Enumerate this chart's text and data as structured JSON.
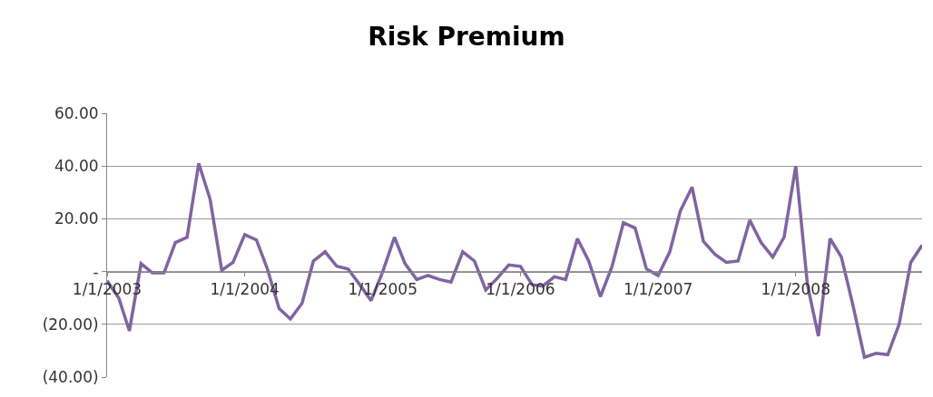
{
  "chart_data": {
    "type": "line",
    "title": "Risk Premium",
    "x": [
      "2003-01",
      "2003-02",
      "2003-03",
      "2003-04",
      "2003-05",
      "2003-06",
      "2003-07",
      "2003-08",
      "2003-09",
      "2003-10",
      "2003-11",
      "2003-12",
      "2004-01",
      "2004-02",
      "2004-03",
      "2004-04",
      "2004-05",
      "2004-06",
      "2004-07",
      "2004-08",
      "2004-09",
      "2004-10",
      "2004-11",
      "2004-12",
      "2005-01",
      "2005-02",
      "2005-03",
      "2005-04",
      "2005-05",
      "2005-06",
      "2005-07",
      "2005-08",
      "2005-09",
      "2005-10",
      "2005-11",
      "2005-12",
      "2006-01",
      "2006-02",
      "2006-03",
      "2006-04",
      "2006-05",
      "2006-06",
      "2006-07",
      "2006-08",
      "2006-09",
      "2006-10",
      "2006-11",
      "2006-12",
      "2007-01",
      "2007-02",
      "2007-03",
      "2007-04",
      "2007-05",
      "2007-06",
      "2007-07",
      "2007-08",
      "2007-09",
      "2007-10",
      "2007-11",
      "2007-12",
      "2008-01",
      "2008-02",
      "2008-03",
      "2008-04",
      "2008-05",
      "2008-06",
      "2008-07",
      "2008-08",
      "2008-09",
      "2008-10",
      "2008-11",
      "2008-12"
    ],
    "series": [
      {
        "color": "#8064a2",
        "values": [
          -3.5,
          -10,
          -22.5,
          3,
          -0.5,
          -0.5,
          11,
          13,
          41,
          27.5,
          0.5,
          3.5,
          14,
          12,
          1,
          -14,
          -18,
          -12,
          4,
          7.5,
          2,
          1,
          -5,
          -11,
          0,
          13,
          3,
          -3,
          -1.5,
          -3,
          -4,
          7.5,
          4,
          -7,
          -2.5,
          2.5,
          2,
          -5,
          -5.5,
          -2,
          -3,
          12.5,
          4,
          -9.5,
          2,
          18.5,
          16.5,
          1,
          -1.5,
          7.5,
          23,
          32,
          11.5,
          6.5,
          3.5,
          4,
          19.5,
          11,
          5.5,
          13,
          40,
          -5,
          -24.5,
          12.5,
          5.5,
          -13,
          -32.5,
          -31,
          -31.5,
          -20,
          3.5,
          10
        ]
      }
    ],
    "xlim": [
      "2003-01",
      "2008-12"
    ],
    "xticks": [
      {
        "value": "2003-01-01",
        "label": "1/1/2003"
      },
      {
        "value": "2004-01-01",
        "label": "1/1/2004"
      },
      {
        "value": "2005-01-01",
        "label": "1/1/2005"
      },
      {
        "value": "2006-01-01",
        "label": "1/1/2006"
      },
      {
        "value": "2007-01-01",
        "label": "1/1/2007"
      },
      {
        "value": "2008-01-01",
        "label": "1/1/2008"
      }
    ],
    "ylim": [
      -40,
      60
    ],
    "yticks": [
      {
        "value": -40,
        "label": "(40.00)"
      },
      {
        "value": -20,
        "label": "(20.00)"
      },
      {
        "value": 0,
        "label": "-"
      },
      {
        "value": 20,
        "label": "20.00"
      },
      {
        "value": 40,
        "label": "40.00"
      },
      {
        "value": 60,
        "label": "60.00"
      }
    ],
    "grid": "y",
    "legend": false,
    "marker": "none",
    "line_style": "solid"
  }
}
